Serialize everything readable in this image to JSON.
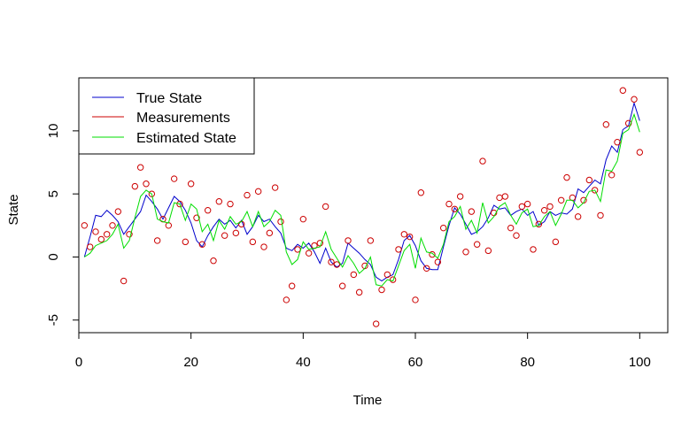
{
  "chart_data": {
    "type": "line",
    "title": "",
    "xlabel": "Time",
    "ylabel": "State",
    "xlim": [
      0,
      105
    ],
    "ylim": [
      -6,
      14.2
    ],
    "xticks": [
      0,
      20,
      40,
      60,
      80,
      100
    ],
    "yticks": [
      -5,
      0,
      5,
      10
    ],
    "grid": false,
    "legend_position": "top-left",
    "x": [
      1,
      2,
      3,
      4,
      5,
      6,
      7,
      8,
      9,
      10,
      11,
      12,
      13,
      14,
      15,
      16,
      17,
      18,
      19,
      20,
      21,
      22,
      23,
      24,
      25,
      26,
      27,
      28,
      29,
      30,
      31,
      32,
      33,
      34,
      35,
      36,
      37,
      38,
      39,
      40,
      41,
      42,
      43,
      44,
      45,
      46,
      47,
      48,
      49,
      50,
      51,
      52,
      53,
      54,
      55,
      56,
      57,
      58,
      59,
      60,
      61,
      62,
      63,
      64,
      65,
      66,
      67,
      68,
      69,
      70,
      71,
      72,
      73,
      74,
      75,
      76,
      77,
      78,
      79,
      80,
      81,
      82,
      83,
      84,
      85,
      86,
      87,
      88,
      89,
      90,
      91,
      92,
      93,
      94,
      95,
      96,
      97,
      98,
      99,
      100
    ],
    "series": [
      {
        "name": "True State",
        "color": "#0000cc",
        "style": "line",
        "values": [
          0.0,
          1.6,
          3.3,
          3.2,
          3.7,
          3.3,
          2.8,
          1.8,
          2.4,
          3.0,
          3.6,
          4.9,
          4.4,
          3.8,
          3.0,
          3.9,
          4.8,
          4.4,
          3.7,
          2.7,
          1.3,
          0.8,
          1.7,
          2.4,
          3.0,
          2.6,
          2.9,
          2.3,
          2.9,
          1.8,
          2.4,
          3.3,
          2.8,
          3.0,
          2.4,
          1.9,
          0.7,
          0.5,
          1.0,
          0.7,
          1.1,
          0.4,
          -0.5,
          0.7,
          -0.4,
          -0.8,
          -0.5,
          1.1,
          0.7,
          0.3,
          -0.2,
          -0.6,
          -1.6,
          -1.9,
          -1.6,
          -1.4,
          -0.2,
          1.3,
          1.7,
          0.9,
          -0.3,
          -0.9,
          -1.0,
          -1.0,
          0.8,
          2.5,
          3.9,
          3.4,
          2.6,
          1.8,
          2.0,
          2.4,
          3.1,
          4.1,
          3.8,
          3.9,
          3.3,
          3.6,
          3.8,
          3.3,
          3.6,
          2.5,
          2.8,
          3.6,
          3.3,
          3.5,
          3.4,
          3.8,
          5.4,
          5.1,
          5.6,
          6.1,
          5.8,
          7.7,
          8.8,
          8.3,
          10.1,
          10.4,
          12.2,
          10.8
        ]
      },
      {
        "name": "Measurements",
        "color": "#cc0000",
        "style": "points",
        "values": [
          2.5,
          0.8,
          2.0,
          1.4,
          1.8,
          2.5,
          3.6,
          -1.9,
          1.8,
          5.6,
          7.1,
          5.8,
          5.0,
          1.3,
          3.0,
          2.5,
          6.2,
          4.2,
          1.2,
          5.8,
          3.1,
          1.0,
          3.7,
          -0.3,
          4.4,
          1.7,
          4.2,
          1.9,
          2.6,
          4.9,
          1.2,
          5.2,
          0.8,
          1.9,
          5.5,
          2.8,
          -3.4,
          -2.3,
          0.6,
          3.0,
          0.3,
          0.9,
          1.1,
          4.0,
          -0.4,
          -0.6,
          -2.3,
          1.3,
          -1.4,
          -2.8,
          -0.7,
          1.3,
          -5.3,
          -2.6,
          -1.4,
          -1.8,
          0.6,
          1.8,
          1.6,
          -3.4,
          5.1,
          -0.9,
          0.2,
          -0.4,
          2.3,
          4.2,
          3.8,
          4.8,
          0.4,
          3.6,
          1.0,
          7.6,
          0.5,
          3.5,
          4.7,
          4.8,
          2.3,
          1.7,
          4.0,
          4.2,
          0.6,
          2.6,
          3.7,
          4.0,
          1.2,
          4.5,
          6.3,
          4.7,
          3.2,
          4.5,
          6.1,
          5.3,
          3.3,
          10.5,
          6.5,
          9.1,
          13.2,
          10.6,
          12.5,
          8.3
        ]
      },
      {
        "name": "Estimated State",
        "color": "#00dd00",
        "style": "line",
        "values": [
          0.0,
          0.3,
          0.9,
          1.1,
          1.3,
          1.8,
          2.6,
          0.7,
          1.3,
          3.1,
          4.8,
          5.3,
          5.0,
          3.0,
          2.8,
          2.7,
          4.3,
          4.2,
          2.9,
          4.2,
          3.8,
          2.0,
          2.6,
          1.3,
          2.9,
          2.2,
          3.2,
          2.6,
          2.8,
          3.6,
          2.4,
          3.6,
          2.4,
          2.8,
          3.7,
          3.3,
          0.4,
          -0.6,
          -0.2,
          1.2,
          0.6,
          0.7,
          0.8,
          2.0,
          0.6,
          -0.1,
          -0.8,
          0.1,
          -0.5,
          -1.3,
          -0.9,
          0.0,
          -2.2,
          -2.3,
          -1.8,
          -1.9,
          -0.7,
          0.5,
          1.0,
          -0.9,
          1.5,
          0.4,
          0.3,
          -0.1,
          1.0,
          2.8,
          3.2,
          4.0,
          2.2,
          2.9,
          1.9,
          4.3,
          2.7,
          3.2,
          4.0,
          4.3,
          3.3,
          2.6,
          3.5,
          3.8,
          2.4,
          2.5,
          3.2,
          3.6,
          2.5,
          3.4,
          4.5,
          4.5,
          3.9,
          4.3,
          5.2,
          5.3,
          4.4,
          6.9,
          6.8,
          7.6,
          9.8,
          10.1,
          11.3,
          9.9
        ]
      }
    ]
  }
}
